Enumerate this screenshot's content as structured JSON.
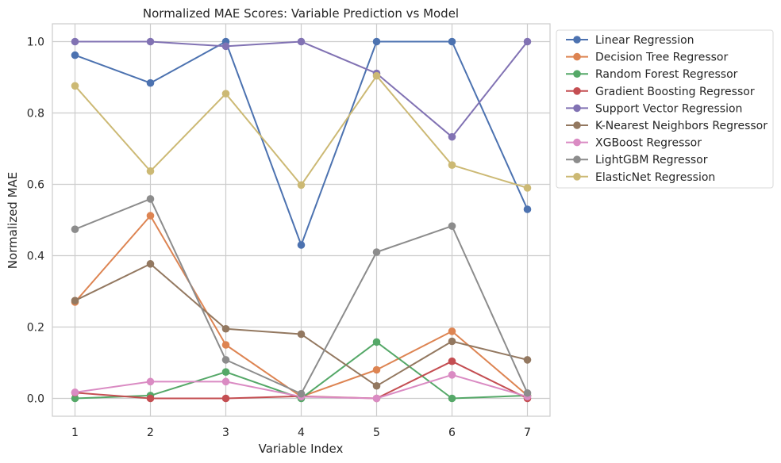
{
  "chart_data": {
    "type": "line",
    "title": "Normalized MAE Scores: Variable Prediction vs Model",
    "xlabel": "Variable Index",
    "ylabel": "Normalized MAE",
    "x": [
      1,
      2,
      3,
      4,
      5,
      6,
      7
    ],
    "xlim": [
      0.7,
      7.3
    ],
    "ylim": [
      -0.05,
      1.05
    ],
    "y_ticks": [
      "0.0",
      "0.2",
      "0.4",
      "0.6",
      "0.8",
      "1.0"
    ],
    "x_ticks": [
      "1",
      "2",
      "3",
      "4",
      "5",
      "6",
      "7"
    ],
    "grid": true,
    "legend_position": "outside-upper-right",
    "series": [
      {
        "name": "Linear Regression",
        "color": "#4c72b0",
        "values": [
          0.962,
          0.884,
          1.0,
          0.43,
          1.0,
          1.0,
          0.53
        ]
      },
      {
        "name": "Decision Tree Regressor",
        "color": "#dd8452",
        "values": [
          0.27,
          0.512,
          0.15,
          0.005,
          0.08,
          0.188,
          0.008
        ]
      },
      {
        "name": "Random Forest Regressor",
        "color": "#55a868",
        "values": [
          0.0,
          0.008,
          0.074,
          0.0,
          0.158,
          0.0,
          0.008
        ]
      },
      {
        "name": "Gradient Boosting Regressor",
        "color": "#c44e52",
        "values": [
          0.016,
          0.0,
          0.0,
          0.006,
          0.0,
          0.104,
          0.0
        ]
      },
      {
        "name": "Support Vector Regression",
        "color": "#8172b3",
        "values": [
          1.0,
          1.0,
          0.987,
          1.0,
          0.911,
          0.733,
          1.0
        ]
      },
      {
        "name": "K-Nearest Neighbors Regressor",
        "color": "#937860",
        "values": [
          0.274,
          0.377,
          0.195,
          0.18,
          0.035,
          0.16,
          0.108
        ]
      },
      {
        "name": "XGBoost Regressor",
        "color": "#da8bc3",
        "values": [
          0.017,
          0.047,
          0.047,
          0.005,
          0.0,
          0.066,
          0.005
        ]
      },
      {
        "name": "LightGBM Regressor",
        "color": "#8c8c8c",
        "values": [
          0.474,
          0.559,
          0.108,
          0.013,
          0.41,
          0.483,
          0.015
        ]
      },
      {
        "name": "ElasticNet Regression",
        "color": "#ccb974",
        "values": [
          0.876,
          0.637,
          0.854,
          0.598,
          0.904,
          0.654,
          0.59
        ]
      }
    ]
  }
}
